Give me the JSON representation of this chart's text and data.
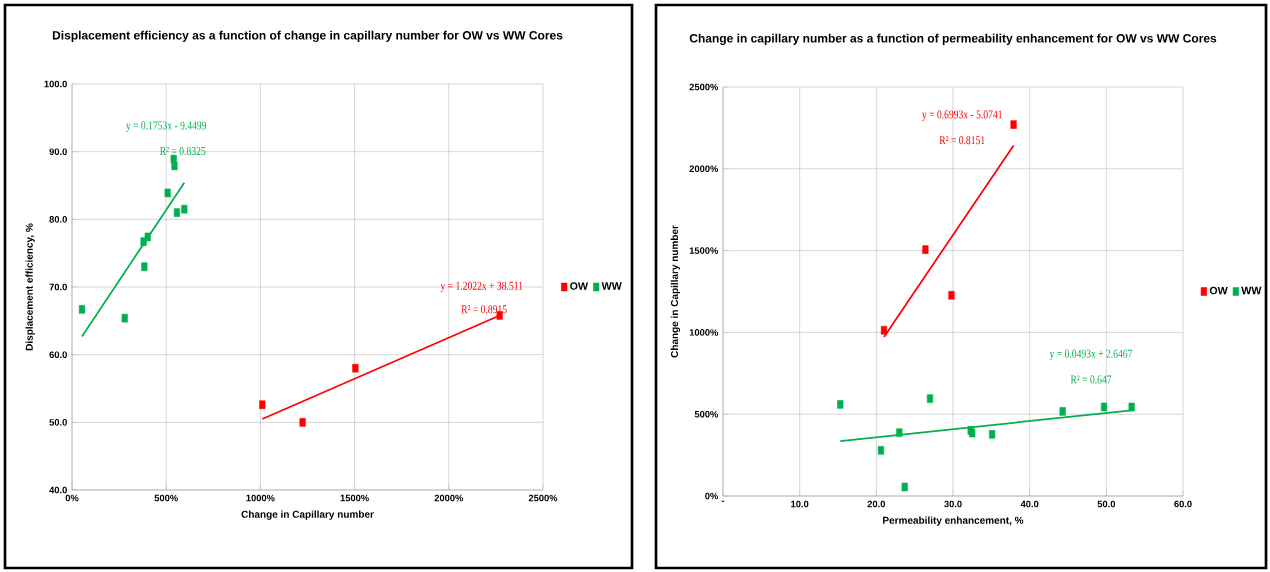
{
  "chart_data": [
    {
      "type": "scatter",
      "title": "Displacement efficiency as a function of change in capillary number for OW vs WW Cores",
      "xlabel": "Change in Capillary number",
      "ylabel": "Displacement efficiency, %",
      "xlim": [
        0,
        2500
      ],
      "xticks": [
        {
          "value": 0,
          "label": "0%"
        },
        {
          "value": 500,
          "label": "500%"
        },
        {
          "value": 1000,
          "label": "1000%"
        },
        {
          "value": 1500,
          "label": "1500%"
        },
        {
          "value": 2000,
          "label": "2000%"
        },
        {
          "value": 2500,
          "label": "2500%"
        }
      ],
      "ylim": [
        40,
        100
      ],
      "yticks": [
        {
          "value": 40,
          "label": "40.0"
        },
        {
          "value": 50,
          "label": "50.0"
        },
        {
          "value": 60,
          "label": "60.0"
        },
        {
          "value": 70,
          "label": "70.0"
        },
        {
          "value": 80,
          "label": "80.0"
        },
        {
          "value": 90,
          "label": "90.0"
        },
        {
          "value": 100,
          "label": "100.0"
        }
      ],
      "grid": true,
      "legend": "right",
      "series": [
        {
          "name": "OW",
          "color": "#ff0000",
          "marker": "square",
          "x": [
            1010,
            1224,
            1504,
            2270
          ],
          "values": [
            52.6,
            50.0,
            58.0,
            65.8
          ]
        },
        {
          "name": "WW",
          "color": "#00b050",
          "marker": "square",
          "x": [
            53,
            280,
            380,
            402,
            384,
            508,
            540,
            544,
            557,
            596
          ],
          "values": [
            66.7,
            65.4,
            76.7,
            77.4,
            73.0,
            83.9,
            88.9,
            87.9,
            81.0,
            81.5
          ]
        },
        {
          "type": "line",
          "color": "#ff0000",
          "marker": "none",
          "x": [
            1010,
            2270
          ],
          "values": [
            50.5,
            65.8
          ]
        },
        {
          "type": "line",
          "color": "#00b050",
          "marker": "none",
          "x": [
            53,
            596
          ],
          "values": [
            62.7,
            85.4
          ]
        }
      ],
      "annotations": [
        "y = 0.1753x - 9.4499",
        "R² = 0.8325",
        "y = 1.2022x + 38.511",
        "R² = 0.8915"
      ]
    },
    {
      "type": "scatter",
      "title": "Change in capillary number as a function of permeability enhancement for OW vs WW Cores",
      "xlabel": "Permeability enhancement, %",
      "ylabel": "Change in Capillary number",
      "xlim": [
        0,
        60
      ],
      "xticks": [
        {
          "value": 0,
          "label": "-"
        },
        {
          "value": 10,
          "label": "10.0"
        },
        {
          "value": 20,
          "label": "20.0"
        },
        {
          "value": 30,
          "label": "30.0"
        },
        {
          "value": 40,
          "label": "40.0"
        },
        {
          "value": 50,
          "label": "50.0"
        },
        {
          "value": 60,
          "label": "60.0"
        }
      ],
      "ylim": [
        0,
        2500
      ],
      "yticks": [
        {
          "value": 0,
          "label": "0%"
        },
        {
          "value": 500,
          "label": "500%"
        },
        {
          "value": 1000,
          "label": "1000%"
        },
        {
          "value": 1500,
          "label": "1500%"
        },
        {
          "value": 2000,
          "label": "2000%"
        },
        {
          "value": 2500,
          "label": "2500%"
        }
      ],
      "grid": true,
      "legend": "right",
      "series": [
        {
          "name": "OW",
          "color": "#ff0000",
          "marker": "square",
          "x": [
            21.0,
            26.4,
            29.8,
            37.9
          ],
          "values": [
            1013,
            1506,
            1227,
            2270
          ]
        },
        {
          "name": "WW",
          "color": "#00b050",
          "marker": "square",
          "x": [
            15.3,
            20.6,
            23.0,
            23.7,
            27.0,
            32.3,
            32.5,
            35.1,
            44.3,
            49.7,
            53.3
          ],
          "values": [
            560,
            279,
            387,
            55,
            595,
            401,
            385,
            377,
            517,
            544,
            544
          ]
        },
        {
          "type": "line",
          "color": "#ff0000",
          "marker": "none",
          "x": [
            21.0,
            37.9
          ],
          "values": [
            972,
            2143
          ]
        },
        {
          "type": "line",
          "color": "#00b050",
          "marker": "none",
          "x": [
            15.3,
            53.3
          ],
          "values": [
            336,
            524
          ]
        }
      ],
      "annotations": [
        "y = 0.6993x - 5.0741",
        "R² = 0.8151",
        "y = 0.0493x + 2.6467",
        "R² = 0.647"
      ]
    }
  ]
}
